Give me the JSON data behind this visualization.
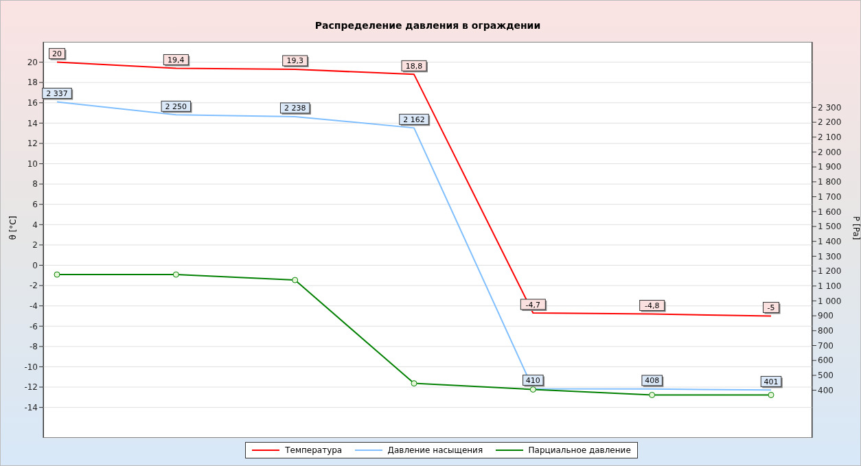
{
  "chart_data": {
    "type": "line",
    "title": "Распределение давления в ограждении",
    "ylabel": "θ [°C]",
    "y2label": "P [Pa]",
    "categories": [
      null,
      null,
      null,
      null,
      null,
      null,
      null
    ],
    "tick_labels": "y",
    "ylim": [
      -17,
      22
    ],
    "yticks": [
      -14,
      -12,
      -10,
      -8,
      -6,
      -4,
      -2,
      0,
      2,
      4,
      6,
      8,
      10,
      12,
      14,
      16,
      18,
      20
    ],
    "y2lim": [
      80,
      2740
    ],
    "y2ticks": [
      {
        "value": 400,
        "label": "400"
      },
      {
        "value": 500,
        "label": "500"
      },
      {
        "value": 600,
        "label": "600"
      },
      {
        "value": 700,
        "label": "700"
      },
      {
        "value": 800,
        "label": "800"
      },
      {
        "value": 900,
        "label": "900"
      },
      {
        "value": 1000,
        "label": "1 000"
      },
      {
        "value": 1100,
        "label": "1 100"
      },
      {
        "value": 1200,
        "label": "1 200"
      },
      {
        "value": 1300,
        "label": "1 300"
      },
      {
        "value": 1400,
        "label": "1 400"
      },
      {
        "value": 1500,
        "label": "1 500"
      },
      {
        "value": 1600,
        "label": "1 600"
      },
      {
        "value": 1700,
        "label": "1 700"
      },
      {
        "value": 1800,
        "label": "1 800"
      },
      {
        "value": 1900,
        "label": "1 900"
      },
      {
        "value": 2000,
        "label": "2 000"
      },
      {
        "value": 2100,
        "label": "2 100"
      },
      {
        "value": 2200,
        "label": "2 200"
      },
      {
        "value": 2300,
        "label": "2 300"
      }
    ],
    "grid": "y",
    "series": [
      {
        "name": "Температура",
        "color": "#ff0000",
        "values": [
          20,
          19.4,
          19.3,
          18.8,
          -4.7,
          -4.8,
          -5
        ],
        "value_labels": [
          "20",
          "19,4",
          "19,3",
          "18,8",
          "-4,7",
          "-4,8",
          "-5"
        ],
        "marker": "none"
      },
      {
        "name": "Давление насыщения",
        "color": "#80bfff",
        "axis": "y2",
        "values": [
          2337,
          2250,
          2238,
          2162,
          410,
          408,
          401
        ],
        "value_labels": [
          "2 337",
          "2 250",
          "2 238",
          "2 162",
          "410",
          "408",
          "401"
        ],
        "marker": "none"
      },
      {
        "name": "Парциальное давление",
        "color": "#008000",
        "axis": "y2",
        "values": [
          1177,
          1177,
          1140,
          446,
          405,
          368,
          368
        ],
        "marker": "circle"
      }
    ],
    "legend": "bottom"
  }
}
